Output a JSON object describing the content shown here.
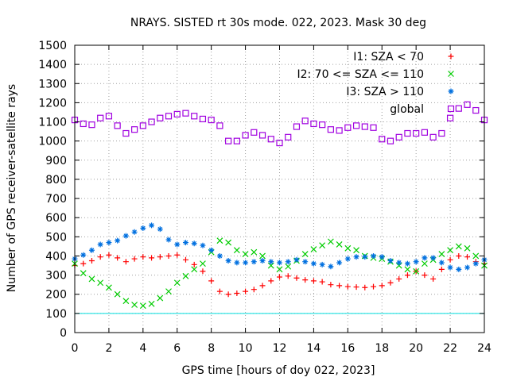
{
  "chart_data": {
    "type": "scatter",
    "title": "NRAYS. SISTED rt 30s mode. 022, 2023. Mask 30 deg",
    "xlabel": "GPS time [hours of doy 022, 2023]",
    "ylabel": "Number of GPS receiver-satellite rays",
    "xlim": [
      0,
      24
    ],
    "ylim": [
      0,
      1500
    ],
    "xticks": [
      0,
      2,
      4,
      6,
      8,
      10,
      12,
      14,
      16,
      18,
      20,
      22,
      24
    ],
    "yticks": [
      0,
      100,
      200,
      300,
      400,
      500,
      600,
      700,
      800,
      900,
      1000,
      1100,
      1200,
      1300,
      1400,
      1500
    ],
    "grid": true,
    "legend_position": "top-right",
    "reference_line": {
      "y": 100,
      "color": "#00dddd"
    },
    "series": [
      {
        "name": "I1: SZA < 70",
        "color": "#ff0000",
        "marker": "plus",
        "x": [
          0,
          0.5,
          1,
          1.5,
          2,
          2.5,
          3,
          3.5,
          4,
          4.5,
          5,
          5.5,
          6,
          6.5,
          7,
          7.5,
          8,
          8.5,
          9,
          9.5,
          10,
          10.5,
          11,
          11.5,
          12,
          12.5,
          13,
          13.5,
          14,
          14.5,
          15,
          15.5,
          16,
          16.5,
          17,
          17.5,
          18,
          18.5,
          19,
          19.5,
          20,
          20.5,
          21,
          21.5,
          22,
          22.5,
          23,
          23.5,
          24
        ],
        "values": [
          350,
          360,
          375,
          395,
          405,
          390,
          370,
          385,
          395,
          390,
          395,
          400,
          405,
          380,
          355,
          320,
          270,
          215,
          200,
          205,
          215,
          225,
          245,
          270,
          290,
          295,
          285,
          275,
          270,
          265,
          250,
          245,
          240,
          238,
          235,
          240,
          245,
          260,
          280,
          300,
          320,
          300,
          280,
          330,
          380,
          400,
          395,
          370,
          360
        ]
      },
      {
        "name": "I2: 70 <= SZA <= 110",
        "color": "#00cc00",
        "marker": "cross",
        "x": [
          0,
          0.5,
          1,
          1.5,
          2,
          2.5,
          3,
          3.5,
          4,
          4.5,
          5,
          5.5,
          6,
          6.5,
          7,
          7.5,
          8,
          8.5,
          9,
          9.5,
          10,
          10.5,
          11,
          11.5,
          12,
          12.5,
          13,
          13.5,
          14,
          14.5,
          15,
          15.5,
          16,
          16.5,
          17,
          17.5,
          18,
          18.5,
          19,
          19.5,
          20,
          20.5,
          21,
          21.5,
          22,
          22.5,
          23,
          23.5,
          24
        ],
        "values": [
          360,
          310,
          280,
          260,
          235,
          200,
          165,
          145,
          140,
          150,
          180,
          215,
          260,
          295,
          330,
          360,
          420,
          480,
          470,
          430,
          410,
          420,
          400,
          350,
          330,
          345,
          375,
          410,
          435,
          455,
          475,
          460,
          440,
          430,
          400,
          390,
          385,
          370,
          350,
          330,
          320,
          360,
          380,
          410,
          430,
          450,
          440,
          400,
          350
        ]
      },
      {
        "name": "I3: SZA > 110",
        "color": "#0070e0",
        "marker": "star",
        "x": [
          0,
          0.5,
          1,
          1.5,
          2,
          2.5,
          3,
          3.5,
          4,
          4.5,
          5,
          5.5,
          6,
          6.5,
          7,
          7.5,
          8,
          8.5,
          9,
          9.5,
          10,
          10.5,
          11,
          11.5,
          12,
          12.5,
          13,
          13.5,
          14,
          14.5,
          15,
          15.5,
          16,
          16.5,
          17,
          17.5,
          18,
          18.5,
          19,
          19.5,
          20,
          20.5,
          21,
          21.5,
          22,
          22.5,
          23,
          23.5,
          24
        ],
        "values": [
          385,
          405,
          430,
          460,
          470,
          480,
          505,
          525,
          545,
          560,
          540,
          485,
          460,
          470,
          465,
          455,
          430,
          400,
          375,
          365,
          365,
          370,
          375,
          370,
          365,
          370,
          380,
          370,
          360,
          355,
          345,
          365,
          385,
          395,
          395,
          400,
          395,
          375,
          365,
          360,
          370,
          390,
          390,
          365,
          340,
          330,
          340,
          360,
          380
        ]
      },
      {
        "name": "global",
        "color": "#a000e0",
        "marker": "square",
        "x": [
          0,
          0.5,
          1,
          1.5,
          2,
          2.5,
          3,
          3.5,
          4,
          4.5,
          5,
          5.5,
          6,
          6.5,
          7,
          7.5,
          8,
          8.5,
          9,
          9.5,
          10,
          10.5,
          11,
          11.5,
          12,
          12.5,
          13,
          13.5,
          14,
          14.5,
          15,
          15.5,
          16,
          16.5,
          17,
          17.5,
          18,
          18.5,
          19,
          19.5,
          20,
          20.5,
          21,
          21.5,
          22,
          22.5,
          23,
          23.5,
          24
        ],
        "values": [
          1110,
          1090,
          1085,
          1120,
          1130,
          1080,
          1040,
          1060,
          1080,
          1100,
          1120,
          1130,
          1140,
          1145,
          1130,
          1115,
          1110,
          1080,
          1000,
          1000,
          1030,
          1045,
          1030,
          1010,
          990,
          1020,
          1075,
          1105,
          1090,
          1085,
          1060,
          1055,
          1070,
          1080,
          1075,
          1070,
          1010,
          1000,
          1020,
          1040,
          1040,
          1045,
          1020,
          1040,
          1120,
          1170,
          1190,
          1160,
          1110
        ]
      }
    ]
  }
}
